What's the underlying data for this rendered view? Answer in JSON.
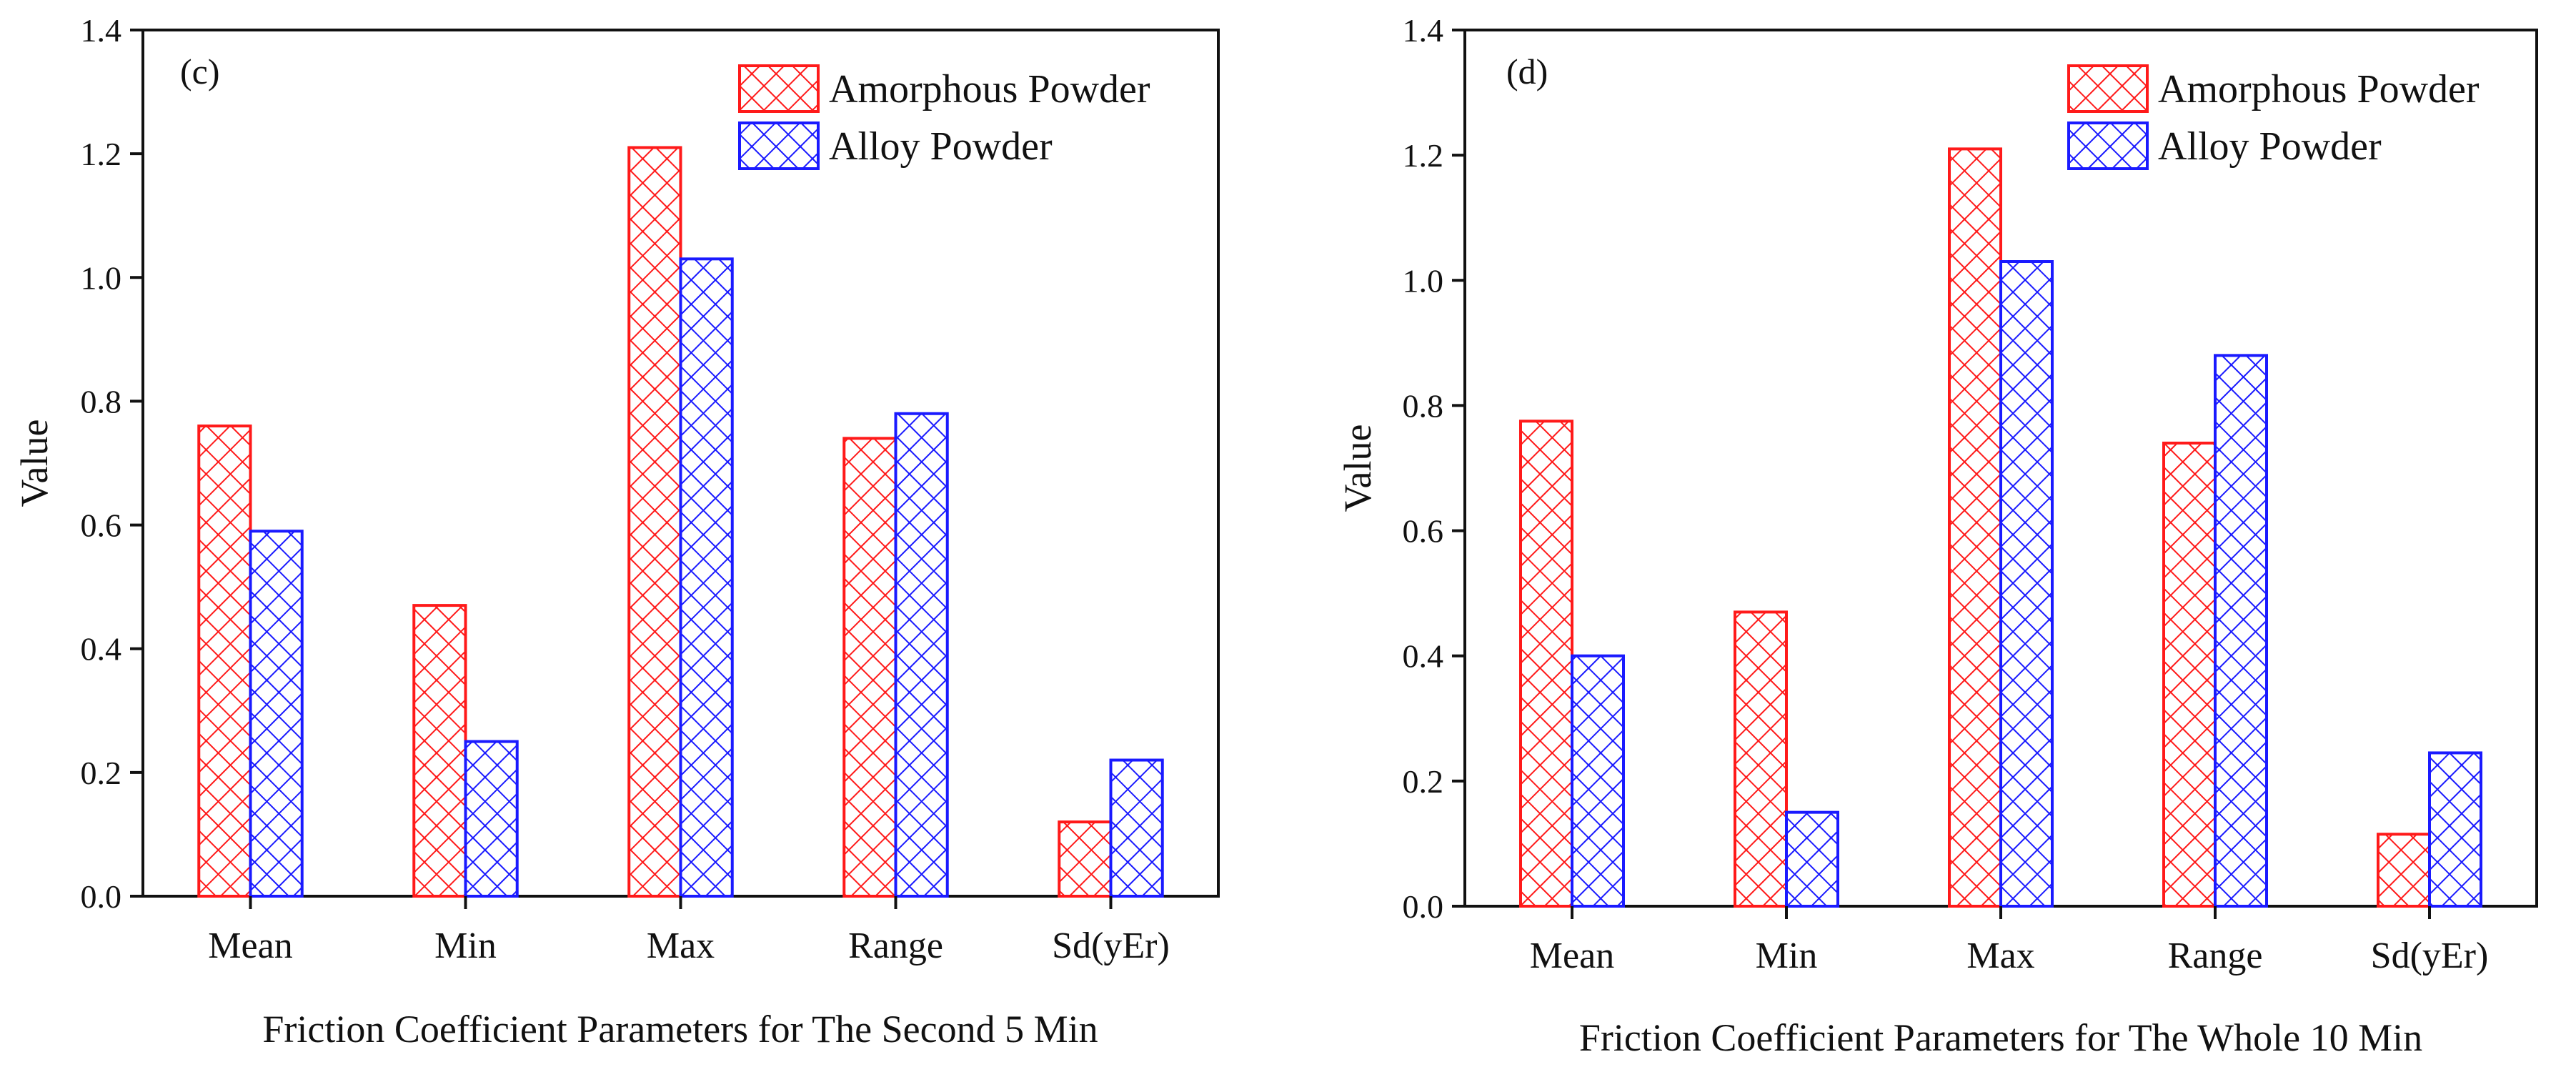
{
  "colors": {
    "amorphous": "#ff1a1a",
    "alloy": "#1a1aff",
    "axis": "#111111"
  },
  "chart_data": [
    {
      "type": "bar",
      "panel_label": "(c)",
      "title": "",
      "xlabel": "Friction Coefficient Parameters for The Second 5 Min",
      "ylabel": "Value",
      "ylim": [
        0,
        1.4
      ],
      "yticks": [
        "0.0",
        "0.2",
        "0.4",
        "0.6",
        "0.8",
        "1.0",
        "1.2",
        "1.4"
      ],
      "categories": [
        "Mean",
        "Min",
        "Max",
        "Range",
        "Sd(yEr)"
      ],
      "legend_position": "top-right",
      "series": [
        {
          "name": "Amorphous Powder",
          "color": "#ff1a1a",
          "values": [
            0.76,
            0.47,
            1.21,
            0.74,
            0.12
          ]
        },
        {
          "name": "Alloy Powder",
          "color": "#1a1aff",
          "values": [
            0.59,
            0.25,
            1.03,
            0.78,
            0.22
          ]
        }
      ]
    },
    {
      "type": "bar",
      "panel_label": "(d)",
      "title": "",
      "xlabel": "Friction Coefficient Parameters for The Whole 10 Min",
      "ylabel": "Value",
      "ylim": [
        0,
        1.4
      ],
      "yticks": [
        "0.0",
        "0.2",
        "0.4",
        "0.6",
        "0.8",
        "1.0",
        "1.2",
        "1.4"
      ],
      "categories": [
        "Mean",
        "Min",
        "Max",
        "Range",
        "Sd(yEr)"
      ],
      "legend_position": "top-right",
      "series": [
        {
          "name": "Amorphous Powder",
          "color": "#ff1a1a",
          "values": [
            0.775,
            0.47,
            1.21,
            0.74,
            0.115
          ]
        },
        {
          "name": "Alloy Powder",
          "color": "#1a1aff",
          "values": [
            0.4,
            0.15,
            1.03,
            0.88,
            0.245
          ]
        }
      ]
    }
  ]
}
